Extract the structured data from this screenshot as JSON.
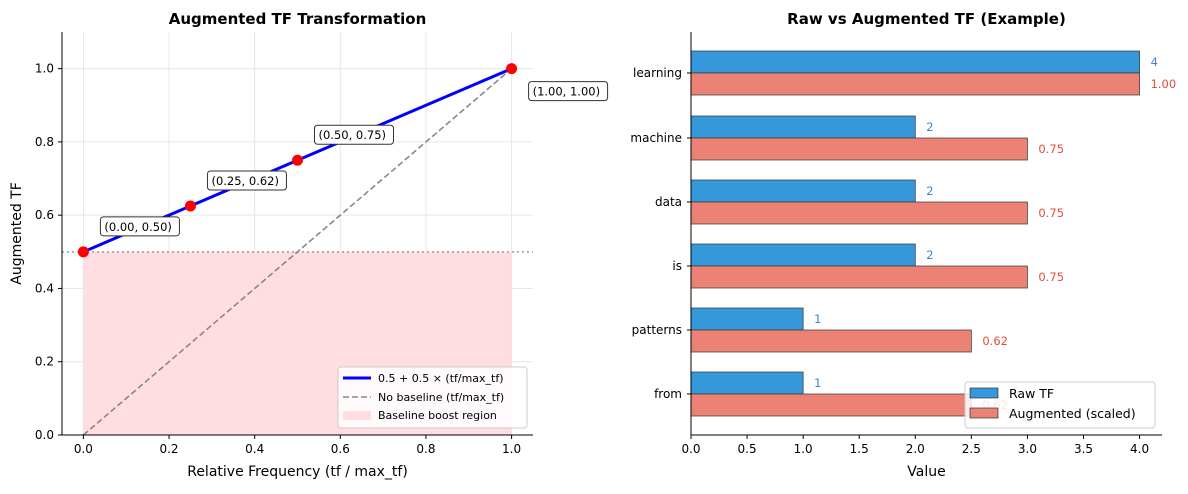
{
  "chart_data": [
    {
      "type": "line",
      "title": "Augmented TF Transformation",
      "xlabel": "Relative Frequency (tf / max_tf)",
      "ylabel": "Augmented TF",
      "xlim": [
        -0.05,
        1.05
      ],
      "ylim": [
        0,
        1.1
      ],
      "xticks": [
        "0.0",
        "0.2",
        "0.4",
        "0.6",
        "0.8",
        "1.0"
      ],
      "yticks": [
        "0.0",
        "0.2",
        "0.4",
        "0.6",
        "0.8",
        "1.0"
      ],
      "grid": true,
      "series": [
        {
          "name": "0.5 + 0.5 × (tf/max_tf)",
          "x": [
            0,
            1
          ],
          "y": [
            0.5,
            1.0
          ],
          "color": "#0000ff",
          "style": "solid"
        },
        {
          "name": "No baseline (tf/max_tf)",
          "x": [
            0,
            1
          ],
          "y": [
            0,
            1
          ],
          "color": "#888888",
          "style": "dashed"
        }
      ],
      "region": {
        "name": "Baseline boost region",
        "x": [
          0,
          1
        ],
        "y": [
          0,
          0.5
        ],
        "color": "#ffdde0"
      },
      "hline": {
        "y": 0.5,
        "style": "dotted"
      },
      "points": [
        {
          "x": 0,
          "y": 0.5,
          "label": "(0.00, 0.50)"
        },
        {
          "x": 0.25,
          "y": 0.625,
          "label": "(0.25, 0.62)"
        },
        {
          "x": 0.5,
          "y": 0.75,
          "label": "(0.50, 0.75)"
        },
        {
          "x": 1,
          "y": 1,
          "label": "(1.00, 1.00)"
        }
      ],
      "legend": "lower-right"
    },
    {
      "type": "bar",
      "orientation": "horizontal",
      "title": "Raw vs Augmented TF (Example)",
      "xlabel": "Value",
      "xlim": [
        0,
        4.2
      ],
      "xticks": [
        "0.0",
        "0.5",
        "1.0",
        "1.5",
        "2.0",
        "2.5",
        "3.0",
        "3.5",
        "4.0"
      ],
      "categories": [
        "learning",
        "machine",
        "data",
        "is",
        "patterns",
        "from"
      ],
      "series": [
        {
          "name": "Raw TF",
          "values": [
            4,
            2,
            2,
            2,
            1,
            1
          ],
          "labels": [
            "4",
            "2",
            "2",
            "2",
            "1",
            "1"
          ],
          "color": "#3498db",
          "label_color": "#4a7fc1"
        },
        {
          "name": "Augmented (scaled)",
          "values": [
            4,
            3,
            3,
            3,
            2.5,
            2.5
          ],
          "labels": [
            "1.00",
            "0.75",
            "0.75",
            "0.75",
            "0.62",
            "0.62"
          ],
          "color": "#ec8275",
          "label_color": "#e74c3c"
        }
      ],
      "legend": "lower-right"
    }
  ]
}
